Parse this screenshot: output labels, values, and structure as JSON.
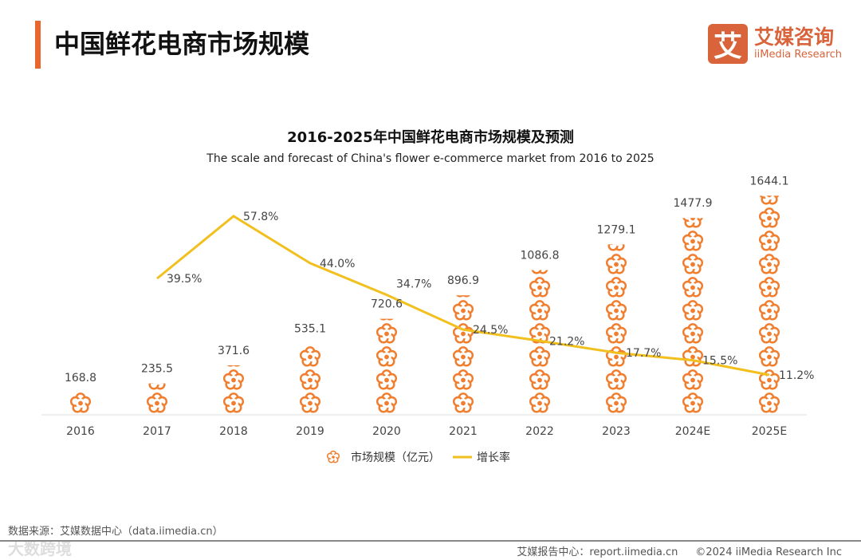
{
  "header": {
    "title": "中国鲜花电商市场规模",
    "logo_icon": "艾",
    "logo_cn": "艾媒咨询",
    "logo_en": "iiMedia Research"
  },
  "colors": {
    "accent": "#e9672f",
    "bar": "#f07e2e",
    "line": "#f2c01e"
  },
  "chart_data": {
    "type": "bar",
    "title": "2016-2025年中国鲜花电商市场规模及预测",
    "subtitle": "The scale and forecast of China's flower e-commerce market from 2016 to 2025",
    "categories": [
      "2016",
      "2017",
      "2018",
      "2019",
      "2020",
      "2021",
      "2022",
      "2023",
      "2024E",
      "2025E"
    ],
    "series": [
      {
        "name": "市场规模（亿元）",
        "type": "pictograph-bar",
        "values": [
          168.8,
          235.5,
          371.6,
          535.1,
          720.6,
          896.9,
          1086.8,
          1279.1,
          1477.9,
          1644.1
        ],
        "labels": [
          "168.8",
          "235.5",
          "371.6",
          "535.1",
          "720.6",
          "896.9",
          "1086.8",
          "1279.1",
          "1477.9",
          "1644.1"
        ]
      },
      {
        "name": "增长率",
        "type": "line",
        "values": [
          null,
          39.5,
          57.8,
          44.0,
          34.7,
          24.5,
          21.2,
          17.7,
          15.5,
          11.2
        ],
        "labels": [
          "",
          "39.5%",
          "57.8%",
          "44.0%",
          "34.7%",
          "24.5%",
          "21.2%",
          "17.7%",
          "15.5%",
          "11.2%"
        ]
      }
    ],
    "legend": "bottom"
  },
  "footer": {
    "source": "数据来源：艾媒数据中心（data.iimedia.cn）",
    "report": "艾媒报告中心：report.iimedia.cn",
    "copyright": "©2024  iiMedia Research Inc",
    "watermark": "大数跨境"
  }
}
